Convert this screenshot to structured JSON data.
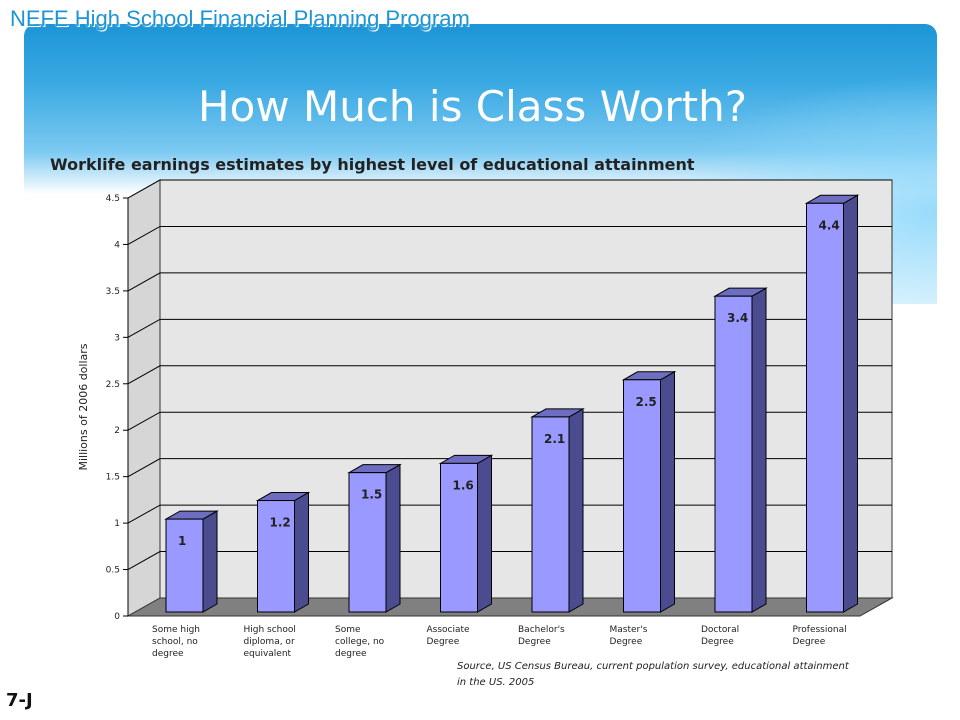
{
  "header": {
    "program": "NEFE High School Financial Planning Program",
    "title": "How Much is Class Worth?",
    "subtitle": "Worklife earnings estimates by highest level of educational attainment"
  },
  "footer": {
    "source": "Source, US Census Bureau, current population survey, educational attainment in the US. 2005",
    "slide_number": "7-J"
  },
  "colors": {
    "bar_front": "#9999ff",
    "bar_side": "#4b4b8f",
    "bar_top": "#6e6ec0",
    "wall": "#e6e6e6",
    "floor": "#808080",
    "banner": "#1c95d6"
  },
  "chart_data": {
    "type": "bar",
    "ylabel": "Millions of 2006 dollars",
    "ylim": [
      0,
      4.5
    ],
    "yticks": [
      "0",
      "0.5",
      "1",
      "1.5",
      "2",
      "2.5",
      "3",
      "3.5",
      "4",
      "4.5"
    ],
    "grid": true,
    "categories": [
      "Some high school, no degree",
      "High school diploma, or equivalent",
      "Some college, no degree",
      "Associate Degree",
      "Bachelor's Degree",
      "Master's Degree",
      "Doctoral Degree",
      "Professional Degree"
    ],
    "category_lines": [
      [
        "Some high",
        "school, no",
        "degree"
      ],
      [
        "High school",
        "diploma, or",
        "equivalent"
      ],
      [
        "Some",
        "college, no",
        "degree"
      ],
      [
        "Associate",
        "Degree"
      ],
      [
        "Bachelor's",
        "Degree"
      ],
      [
        "Master's",
        "Degree"
      ],
      [
        "Doctoral",
        "Degree"
      ],
      [
        "Professional",
        "Degree"
      ]
    ],
    "values": [
      1,
      1.2,
      1.5,
      1.6,
      2.1,
      2.5,
      3.4,
      4.4
    ],
    "data_labels": [
      "1",
      "1.2",
      "1.5",
      "1.6",
      "2.1",
      "2.5",
      "3.4",
      "4.4"
    ]
  }
}
